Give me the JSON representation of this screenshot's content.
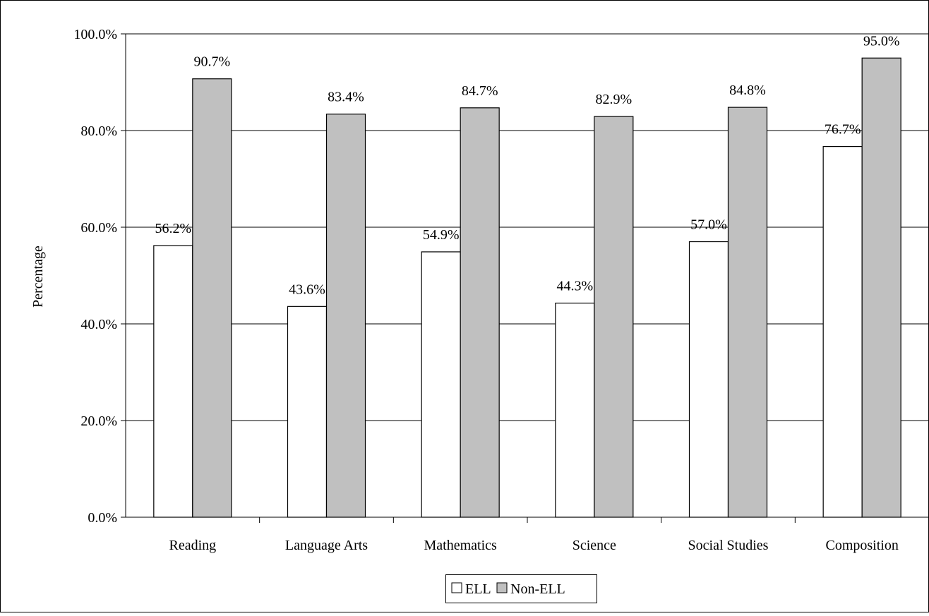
{
  "chart_data": {
    "type": "bar",
    "title": "",
    "xlabel": "",
    "ylabel": "Percentage",
    "ylim": [
      0,
      100
    ],
    "y_ticks": [
      "0.0%",
      "20.0%",
      "40.0%",
      "60.0%",
      "80.0%",
      "100.0%"
    ],
    "grid": true,
    "legend_position": "bottom-center",
    "categories": [
      "Reading",
      "Language Arts",
      "Mathematics",
      "Science",
      "Social Studies",
      "Composition"
    ],
    "series": [
      {
        "name": "ELL",
        "color": "#ffffff",
        "values": [
          56.2,
          43.6,
          54.9,
          44.3,
          57.0,
          76.7
        ],
        "labels": [
          "56.2%",
          "43.6%",
          "54.9%",
          "44.3%",
          "57.0%",
          "76.7%"
        ]
      },
      {
        "name": "Non-ELL",
        "color": "#c0c0c0",
        "values": [
          90.7,
          83.4,
          84.7,
          82.9,
          84.8,
          95.0
        ],
        "labels": [
          "90.7%",
          "83.4%",
          "84.7%",
          "82.9%",
          "84.8%",
          "95.0%"
        ]
      }
    ]
  }
}
